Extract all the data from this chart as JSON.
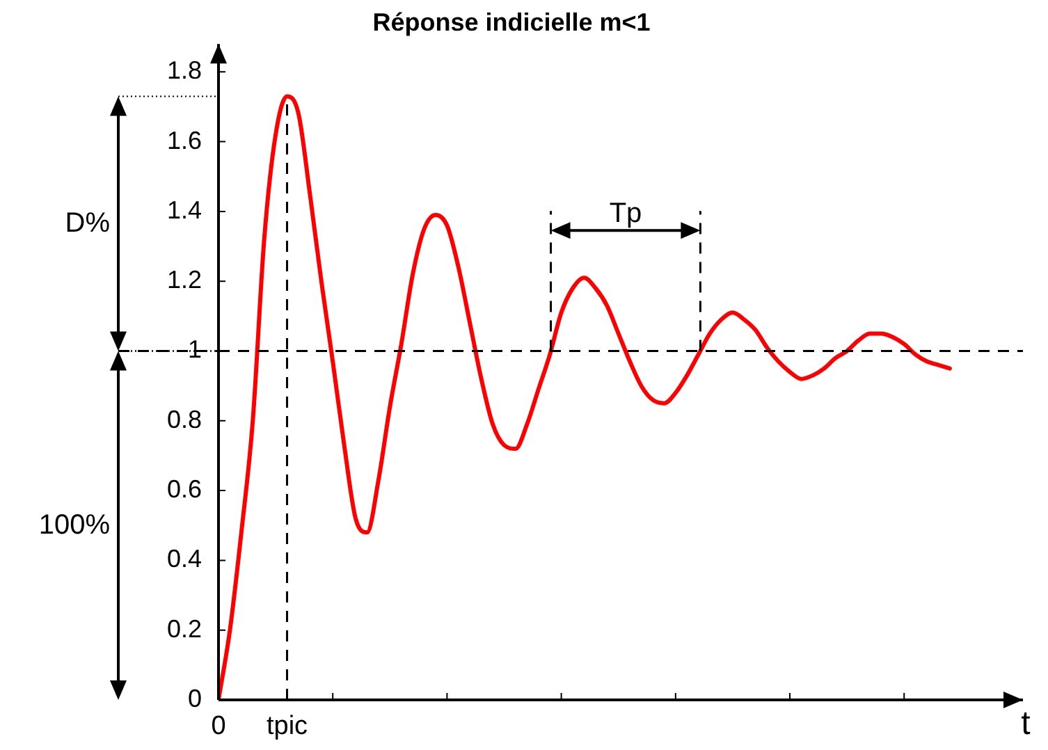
{
  "chart_data": {
    "type": "line",
    "title": "Réponse indicielle m<1",
    "xlabel": "t",
    "categories": [
      "0",
      null,
      null,
      null,
      null,
      null,
      "tpic",
      null,
      null,
      null,
      null,
      null,
      null,
      null,
      null,
      null,
      null,
      null,
      null,
      null,
      null,
      null,
      null,
      null,
      null,
      null,
      null,
      null,
      null,
      null,
      null,
      null,
      null,
      null,
      null,
      null,
      null,
      null,
      null,
      null,
      null,
      null,
      null,
      null,
      null,
      null,
      null,
      null,
      null,
      null,
      null,
      null,
      null,
      null,
      null,
      null,
      null,
      null,
      null,
      null,
      null,
      null,
      null,
      null,
      null
    ],
    "ylim": [
      0,
      1.88
    ],
    "yticks": [
      0,
      0.2,
      0.4,
      0.6,
      0.8,
      1,
      1.2,
      1.4,
      1.6,
      1.8
    ],
    "grid": false,
    "legend": false,
    "marker": "none",
    "line_style": "solid",
    "series": [
      {
        "color": "#ff0000",
        "values": [
          0,
          0.2,
          0.48,
          0.8,
          1.32,
          1.62,
          1.73,
          1.68,
          1.45,
          1.2,
          0.97,
          0.73,
          0.52,
          0.48,
          0.63,
          0.84,
          1.02,
          1.22,
          1.35,
          1.39,
          1.36,
          1.24,
          1.08,
          0.92,
          0.79,
          0.73,
          0.72,
          0.79,
          0.89,
          0.99,
          1.11,
          1.18,
          1.21,
          1.18,
          1.13,
          1.05,
          0.97,
          0.9,
          0.86,
          0.85,
          0.88,
          0.93,
          0.99,
          1.05,
          1.09,
          1.11,
          1.09,
          1.06,
          1.01,
          0.97,
          0.94,
          0.92,
          0.93,
          0.95,
          0.98,
          1,
          1.03,
          1.05,
          1.05,
          1.04,
          1.02,
          0.99,
          0.97,
          0.96,
          0.95
        ]
      }
    ],
    "ref_lines": [
      {
        "axis": "y",
        "value": 1,
        "line_style": "dashed"
      },
      {
        "axis": "x",
        "value": "tpic",
        "line_style": "dashed"
      }
    ],
    "annotations": [
      "D%",
      "100%",
      "Tp"
    ]
  }
}
